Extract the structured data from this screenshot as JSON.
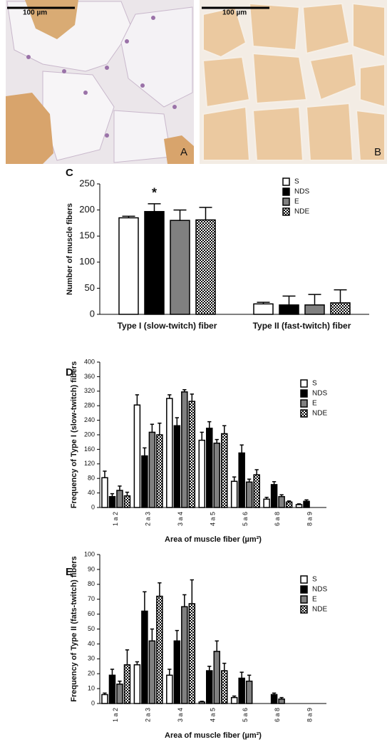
{
  "images": [
    {
      "scale_bar": "100 µm",
      "label": "A"
    },
    {
      "scale_bar": "100 µm",
      "label": "B"
    }
  ],
  "chart_data": [
    {
      "type": "bar",
      "panel": "C",
      "ylabel": "Number of muscle fibers",
      "annotation": "*",
      "categories": [
        "Type I (slow-twitch) fiber",
        "Type II (fast-twitch) fiber"
      ],
      "ylim": [
        0,
        250
      ],
      "yticks": [
        0,
        50,
        100,
        150,
        200,
        250
      ],
      "legend": "upper right",
      "series": [
        {
          "name": "S",
          "color": "#ffffff",
          "values": [
            185,
            20
          ],
          "errors": [
            3,
            3
          ]
        },
        {
          "name": "NDS",
          "color": "#000000",
          "values": [
            197,
            18
          ],
          "errors": [
            15,
            17
          ]
        },
        {
          "name": "E",
          "color": "#808080",
          "values": [
            180,
            18
          ],
          "errors": [
            20,
            20
          ]
        },
        {
          "name": "NDE",
          "color": "#ffffff",
          "pattern": "checker",
          "values": [
            181,
            22
          ],
          "errors": [
            24,
            25
          ]
        }
      ]
    },
    {
      "type": "bar",
      "panel": "D",
      "ylabel": "Frequency of Type I (slow-twitch) fibers",
      "xlabel": "Area of muscle fiber (µm²)",
      "categories": [
        "1 a 2",
        "2 a 3",
        "3 a 4",
        "4 a 5",
        "5 a 6",
        "6 a 8",
        "8 a 9"
      ],
      "ylim": [
        0,
        400
      ],
      "yticks": [
        0,
        40,
        80,
        120,
        160,
        200,
        240,
        280,
        320,
        360,
        400
      ],
      "legend": "upper right",
      "series": [
        {
          "name": "S",
          "color": "#ffffff",
          "values": [
            82,
            282,
            300,
            185,
            72,
            23,
            8
          ],
          "errors": [
            18,
            28,
            10,
            22,
            12,
            5,
            2
          ]
        },
        {
          "name": "NDS",
          "color": "#000000",
          "values": [
            30,
            142,
            225,
            218,
            150,
            63,
            17
          ],
          "errors": [
            8,
            22,
            22,
            18,
            22,
            8,
            4
          ]
        },
        {
          "name": "E",
          "color": "#808080",
          "values": [
            47,
            207,
            318,
            177,
            70,
            30,
            0
          ],
          "errors": [
            12,
            22,
            6,
            10,
            8,
            5,
            0
          ]
        },
        {
          "name": "NDE",
          "color": "#ffffff",
          "pattern": "checker",
          "values": [
            32,
            200,
            292,
            203,
            90,
            15,
            0
          ],
          "errors": [
            10,
            32,
            20,
            22,
            14,
            3,
            0
          ]
        }
      ]
    },
    {
      "type": "bar",
      "panel": "E",
      "ylabel": "Frequency of Type II (fats-twitch) fibers",
      "xlabel": "Area of muscle fiber (µm²)",
      "categories": [
        "1 a 2",
        "2 a 3",
        "3 a 4",
        "4 a 5",
        "5 a 6",
        "6 a 8",
        "8 a 9"
      ],
      "ylim": [
        0,
        100
      ],
      "yticks": [
        0,
        10,
        20,
        30,
        40,
        50,
        60,
        70,
        80,
        90,
        100
      ],
      "legend": "upper right",
      "series": [
        {
          "name": "S",
          "color": "#ffffff",
          "values": [
            6,
            26,
            19,
            1,
            4,
            0,
            0
          ],
          "errors": [
            1,
            2,
            4,
            0.5,
            1,
            0,
            0
          ]
        },
        {
          "name": "NDS",
          "color": "#000000",
          "values": [
            19,
            62,
            42,
            22,
            17,
            6,
            0
          ],
          "errors": [
            4,
            13,
            7,
            3,
            4,
            1,
            0
          ]
        },
        {
          "name": "E",
          "color": "#808080",
          "values": [
            13,
            42,
            65,
            35,
            15,
            3,
            0
          ],
          "errors": [
            2,
            8,
            8,
            7,
            4,
            1,
            0
          ]
        },
        {
          "name": "NDE",
          "color": "#ffffff",
          "pattern": "checker",
          "values": [
            26,
            72,
            67,
            22,
            0,
            0,
            0
          ],
          "errors": [
            10,
            9,
            16,
            5,
            0,
            0,
            0
          ]
        }
      ]
    }
  ]
}
